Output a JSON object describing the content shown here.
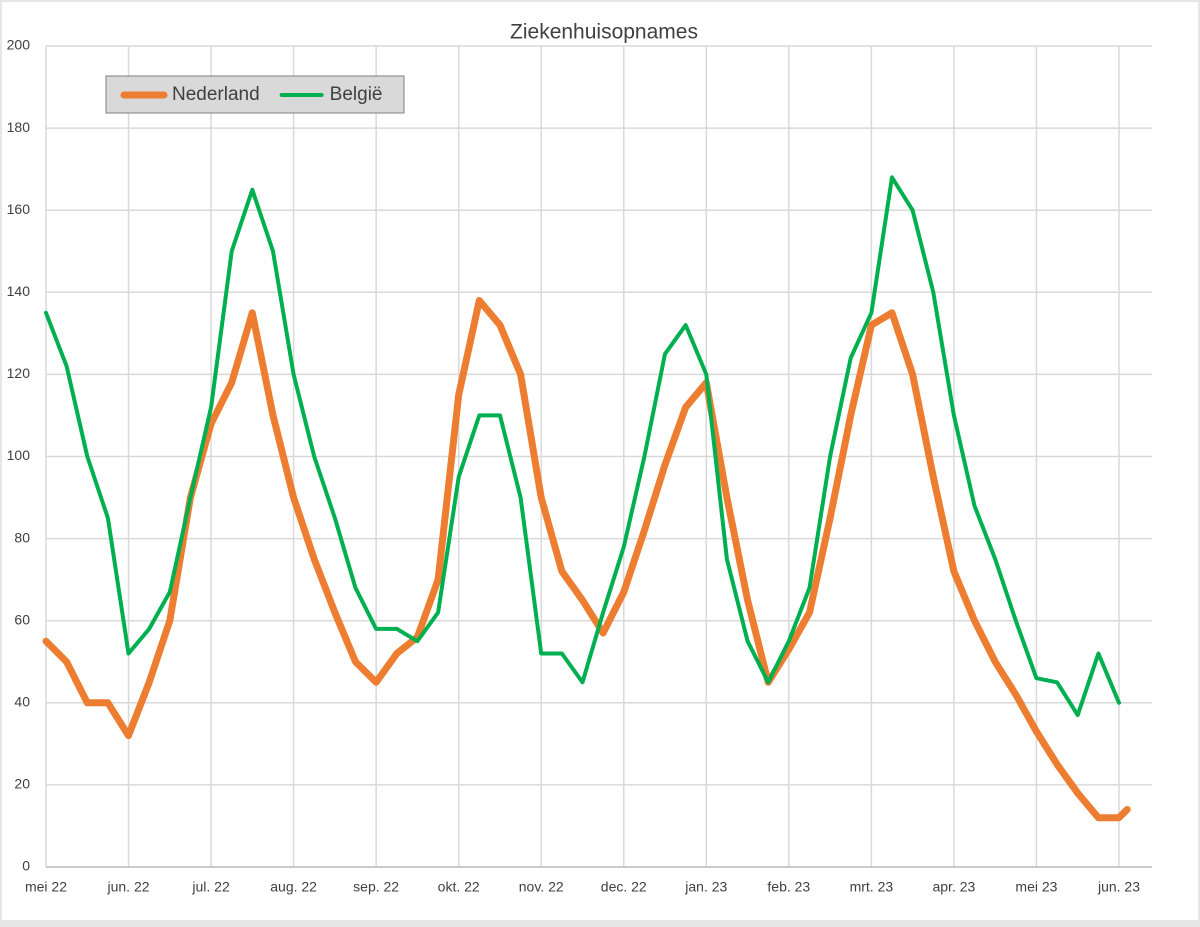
{
  "chart_data": {
    "type": "line",
    "title": "Ziekenhuisopnames",
    "x": [
      0,
      0.25,
      0.5,
      0.75,
      1,
      1.25,
      1.5,
      1.75,
      2,
      2.25,
      2.5,
      2.75,
      3,
      3.25,
      3.5,
      3.75,
      4,
      4.25,
      4.5,
      4.75,
      5,
      5.25,
      5.5,
      5.75,
      6,
      6.25,
      6.5,
      6.75,
      7,
      7.25,
      7.5,
      7.75,
      8,
      8.25,
      8.5,
      8.75,
      9,
      9.25,
      9.5,
      9.75,
      10,
      10.25,
      10.5,
      10.75,
      11,
      11.25,
      11.5,
      11.75,
      12,
      12.25,
      12.5,
      12.75,
      13,
      13.1
    ],
    "series": [
      {
        "name": "Nederland",
        "color": "#ed7d31",
        "width": 7,
        "values": [
          55,
          50,
          40,
          40,
          32,
          45,
          60,
          90,
          108,
          118,
          135,
          110,
          90,
          75,
          62,
          50,
          45,
          52,
          56,
          70,
          115,
          138,
          132,
          120,
          90,
          72,
          65,
          57,
          67,
          82,
          98,
          112,
          118,
          90,
          65,
          45,
          53,
          62,
          85,
          110,
          132,
          135,
          120,
          95,
          72,
          60,
          50,
          42,
          33,
          25,
          18,
          12,
          12,
          14
        ]
      },
      {
        "name": "België",
        "color": "#00b050",
        "width": 4,
        "values": [
          135,
          122,
          100,
          85,
          52,
          58,
          67,
          90,
          112,
          150,
          165,
          150,
          120,
          100,
          85,
          68,
          58,
          58,
          55,
          62,
          95,
          110,
          110,
          90,
          52,
          52,
          45,
          62,
          78,
          100,
          125,
          132,
          120,
          75,
          55,
          45,
          55,
          68,
          100,
          124,
          135,
          168,
          160,
          140,
          110,
          88,
          75,
          60,
          46,
          45,
          37,
          52,
          40,
          null
        ]
      }
    ],
    "xlim": [
      0,
      13.4
    ],
    "xticks": [
      {
        "value": 0,
        "label": "mei 22"
      },
      {
        "value": 1,
        "label": "jun. 22"
      },
      {
        "value": 2,
        "label": "jul. 22"
      },
      {
        "value": 3,
        "label": "aug. 22"
      },
      {
        "value": 4,
        "label": "sep. 22"
      },
      {
        "value": 5,
        "label": "okt. 22"
      },
      {
        "value": 6,
        "label": "nov. 22"
      },
      {
        "value": 7,
        "label": "dec. 22"
      },
      {
        "value": 8,
        "label": "jan. 23"
      },
      {
        "value": 9,
        "label": "feb. 23"
      },
      {
        "value": 10,
        "label": "mrt. 23"
      },
      {
        "value": 11,
        "label": "apr. 23"
      },
      {
        "value": 12,
        "label": "mei 23"
      },
      {
        "value": 13,
        "label": "jun. 23"
      }
    ],
    "ylim": [
      0,
      200
    ],
    "yticks": [
      0,
      20,
      40,
      60,
      80,
      100,
      120,
      140,
      160,
      180,
      200
    ],
    "grid": true,
    "legend": "top-left"
  }
}
